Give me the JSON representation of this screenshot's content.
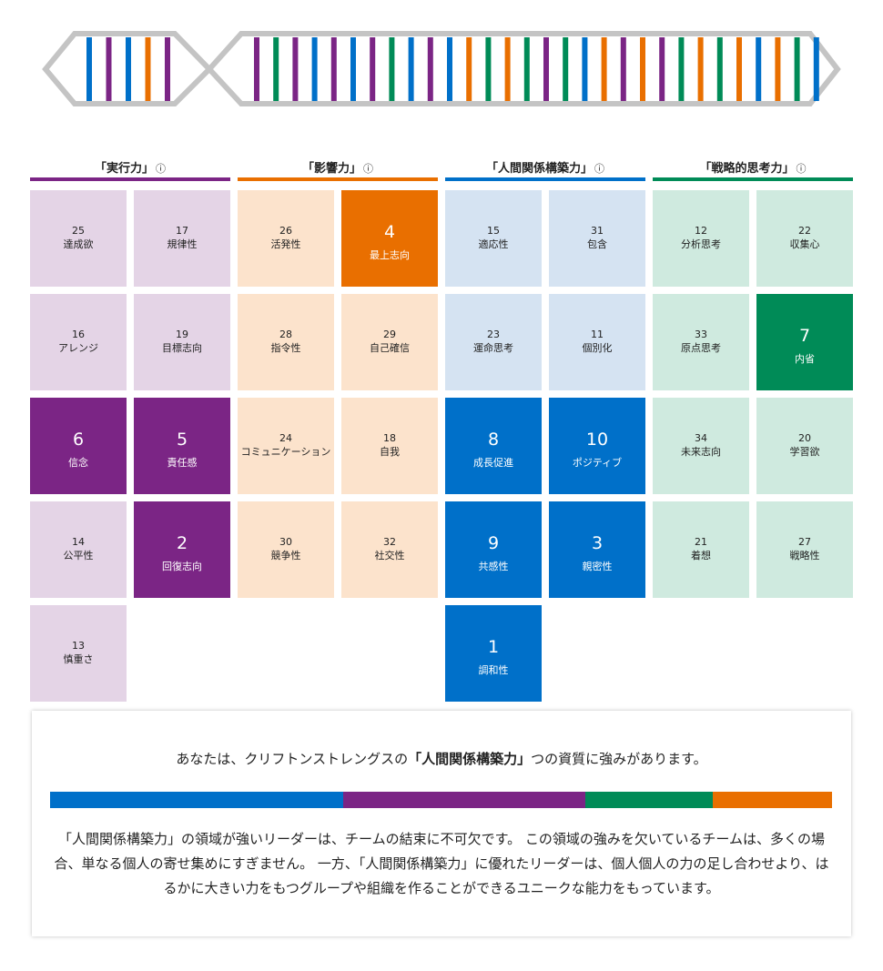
{
  "colors": {
    "executing": "#7B2585",
    "influencing": "#E96F00",
    "relationship": "#0070C9",
    "strategic": "#008B57",
    "executing_light": "#E4D4E6",
    "influencing_light": "#FCE3CC",
    "relationship_light": "#D5E3F2",
    "strategic_light": "#CFEADF",
    "dna_frame": "#C4C4C4"
  },
  "dna": {
    "left_stripes": [
      "relationship",
      "executing",
      "relationship",
      "influencing",
      "executing"
    ],
    "right_stripes": [
      "executing",
      "strategic",
      "executing",
      "relationship",
      "executing",
      "relationship",
      "executing",
      "strategic",
      "relationship",
      "executing",
      "relationship",
      "influencing",
      "strategic",
      "influencing",
      "strategic",
      "executing",
      "strategic",
      "relationship",
      "influencing",
      "executing",
      "influencing",
      "executing",
      "strategic",
      "influencing",
      "strategic",
      "influencing",
      "relationship",
      "influencing",
      "strategic",
      "relationship"
    ]
  },
  "domains": [
    {
      "key": "executing",
      "title": "「実行力」",
      "info_icon": "ⓘ",
      "themes": [
        {
          "rank": "25",
          "name": "達成欲",
          "top": false
        },
        {
          "rank": "17",
          "name": "規律性",
          "top": false
        },
        {
          "rank": "16",
          "name": "アレンジ",
          "top": false
        },
        {
          "rank": "19",
          "name": "目標志向",
          "top": false
        },
        {
          "rank": "6",
          "name": "信念",
          "top": true
        },
        {
          "rank": "5",
          "name": "責任感",
          "top": true
        },
        {
          "rank": "14",
          "name": "公平性",
          "top": false
        },
        {
          "rank": "2",
          "name": "回復志向",
          "top": true
        },
        {
          "rank": "13",
          "name": "慎重さ",
          "top": false
        }
      ]
    },
    {
      "key": "influencing",
      "title": "「影響力」",
      "info_icon": "ⓘ",
      "themes": [
        {
          "rank": "26",
          "name": "活発性",
          "top": false
        },
        {
          "rank": "4",
          "name": "最上志向",
          "top": true
        },
        {
          "rank": "28",
          "name": "指令性",
          "top": false
        },
        {
          "rank": "29",
          "name": "自己確信",
          "top": false
        },
        {
          "rank": "24",
          "name": "コミュニケーション",
          "top": false
        },
        {
          "rank": "18",
          "name": "自我",
          "top": false
        },
        {
          "rank": "30",
          "name": "競争性",
          "top": false
        },
        {
          "rank": "32",
          "name": "社交性",
          "top": false
        }
      ]
    },
    {
      "key": "relationship",
      "title": "「人間関係構築力」",
      "info_icon": "ⓘ",
      "themes": [
        {
          "rank": "15",
          "name": "適応性",
          "top": false
        },
        {
          "rank": "31",
          "name": "包含",
          "top": false
        },
        {
          "rank": "23",
          "name": "運命思考",
          "top": false
        },
        {
          "rank": "11",
          "name": "個別化",
          "top": false
        },
        {
          "rank": "8",
          "name": "成長促進",
          "top": true
        },
        {
          "rank": "10",
          "name": "ポジティブ",
          "top": true
        },
        {
          "rank": "9",
          "name": "共感性",
          "top": true
        },
        {
          "rank": "3",
          "name": "親密性",
          "top": true
        },
        {
          "rank": "1",
          "name": "調和性",
          "top": true
        }
      ]
    },
    {
      "key": "strategic",
      "title": "「戦略的思考力」",
      "info_icon": "ⓘ",
      "themes": [
        {
          "rank": "12",
          "name": "分析思考",
          "top": false
        },
        {
          "rank": "22",
          "name": "収集心",
          "top": false
        },
        {
          "rank": "33",
          "name": "原点思考",
          "top": false
        },
        {
          "rank": "7",
          "name": "内省",
          "top": true
        },
        {
          "rank": "34",
          "name": "未来志向",
          "top": false
        },
        {
          "rank": "20",
          "name": "学習欲",
          "top": false
        },
        {
          "rank": "21",
          "name": "着想",
          "top": false
        },
        {
          "rank": "27",
          "name": "戦略性",
          "top": false
        }
      ]
    }
  ],
  "summary": {
    "headline_before": "あなたは、クリフトンストレングスの",
    "headline_domain": "「人間関係構築力」",
    "headline_after": "つの資質に強みがあります。",
    "distribution": [
      {
        "domain": "relationship",
        "share": 0.375
      },
      {
        "domain": "executing",
        "share": 0.31
      },
      {
        "domain": "strategic",
        "share": 0.163
      },
      {
        "domain": "influencing",
        "share": 0.152
      }
    ],
    "description": "「人間関係構築力」の領域が強いリーダーは、チームの結束に不可欠です。 この領域の強みを欠いているチームは、多くの場合、単なる個人の寄せ集めにすぎません。 一方、「人間関係構築力」に優れたリーダーは、個人個人の力の足し合わせより、はるかに大きい力をもつグループや組織を作ることができるユニークな能力をもっています。"
  }
}
